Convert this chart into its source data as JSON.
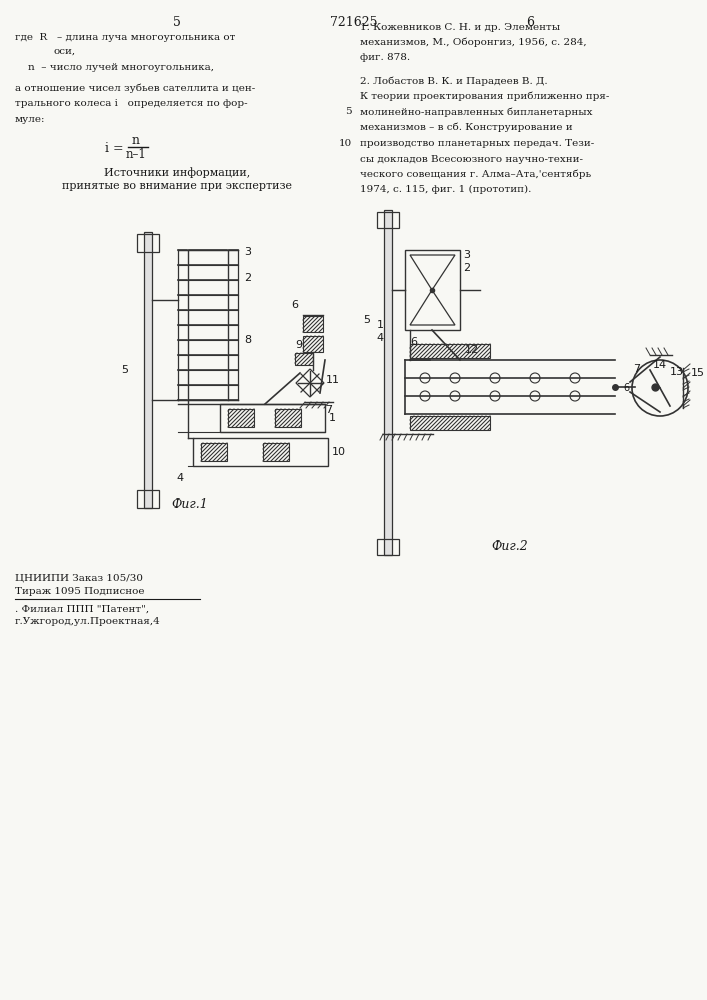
{
  "bg_color": "#f8f8f4",
  "text_color": "#1a1a1a",
  "page_num_left": "5",
  "page_num_center": "721625",
  "page_num_right": "6",
  "fig1_caption": "Фиг.1",
  "fig2_caption": "Фиг.2",
  "bottom_text1": "ЦНИИПИ Заказ 105/30",
  "bottom_text2": "Тираж 1095 Подписное",
  "bottom_text3": ". Филиал ППП \"Патент\",",
  "bottom_text4": "г.Ужгород,ул.Проектная,4",
  "sources_heading1": "Источники информации,",
  "sources_heading2": "принятые во внимание при экспертизе"
}
